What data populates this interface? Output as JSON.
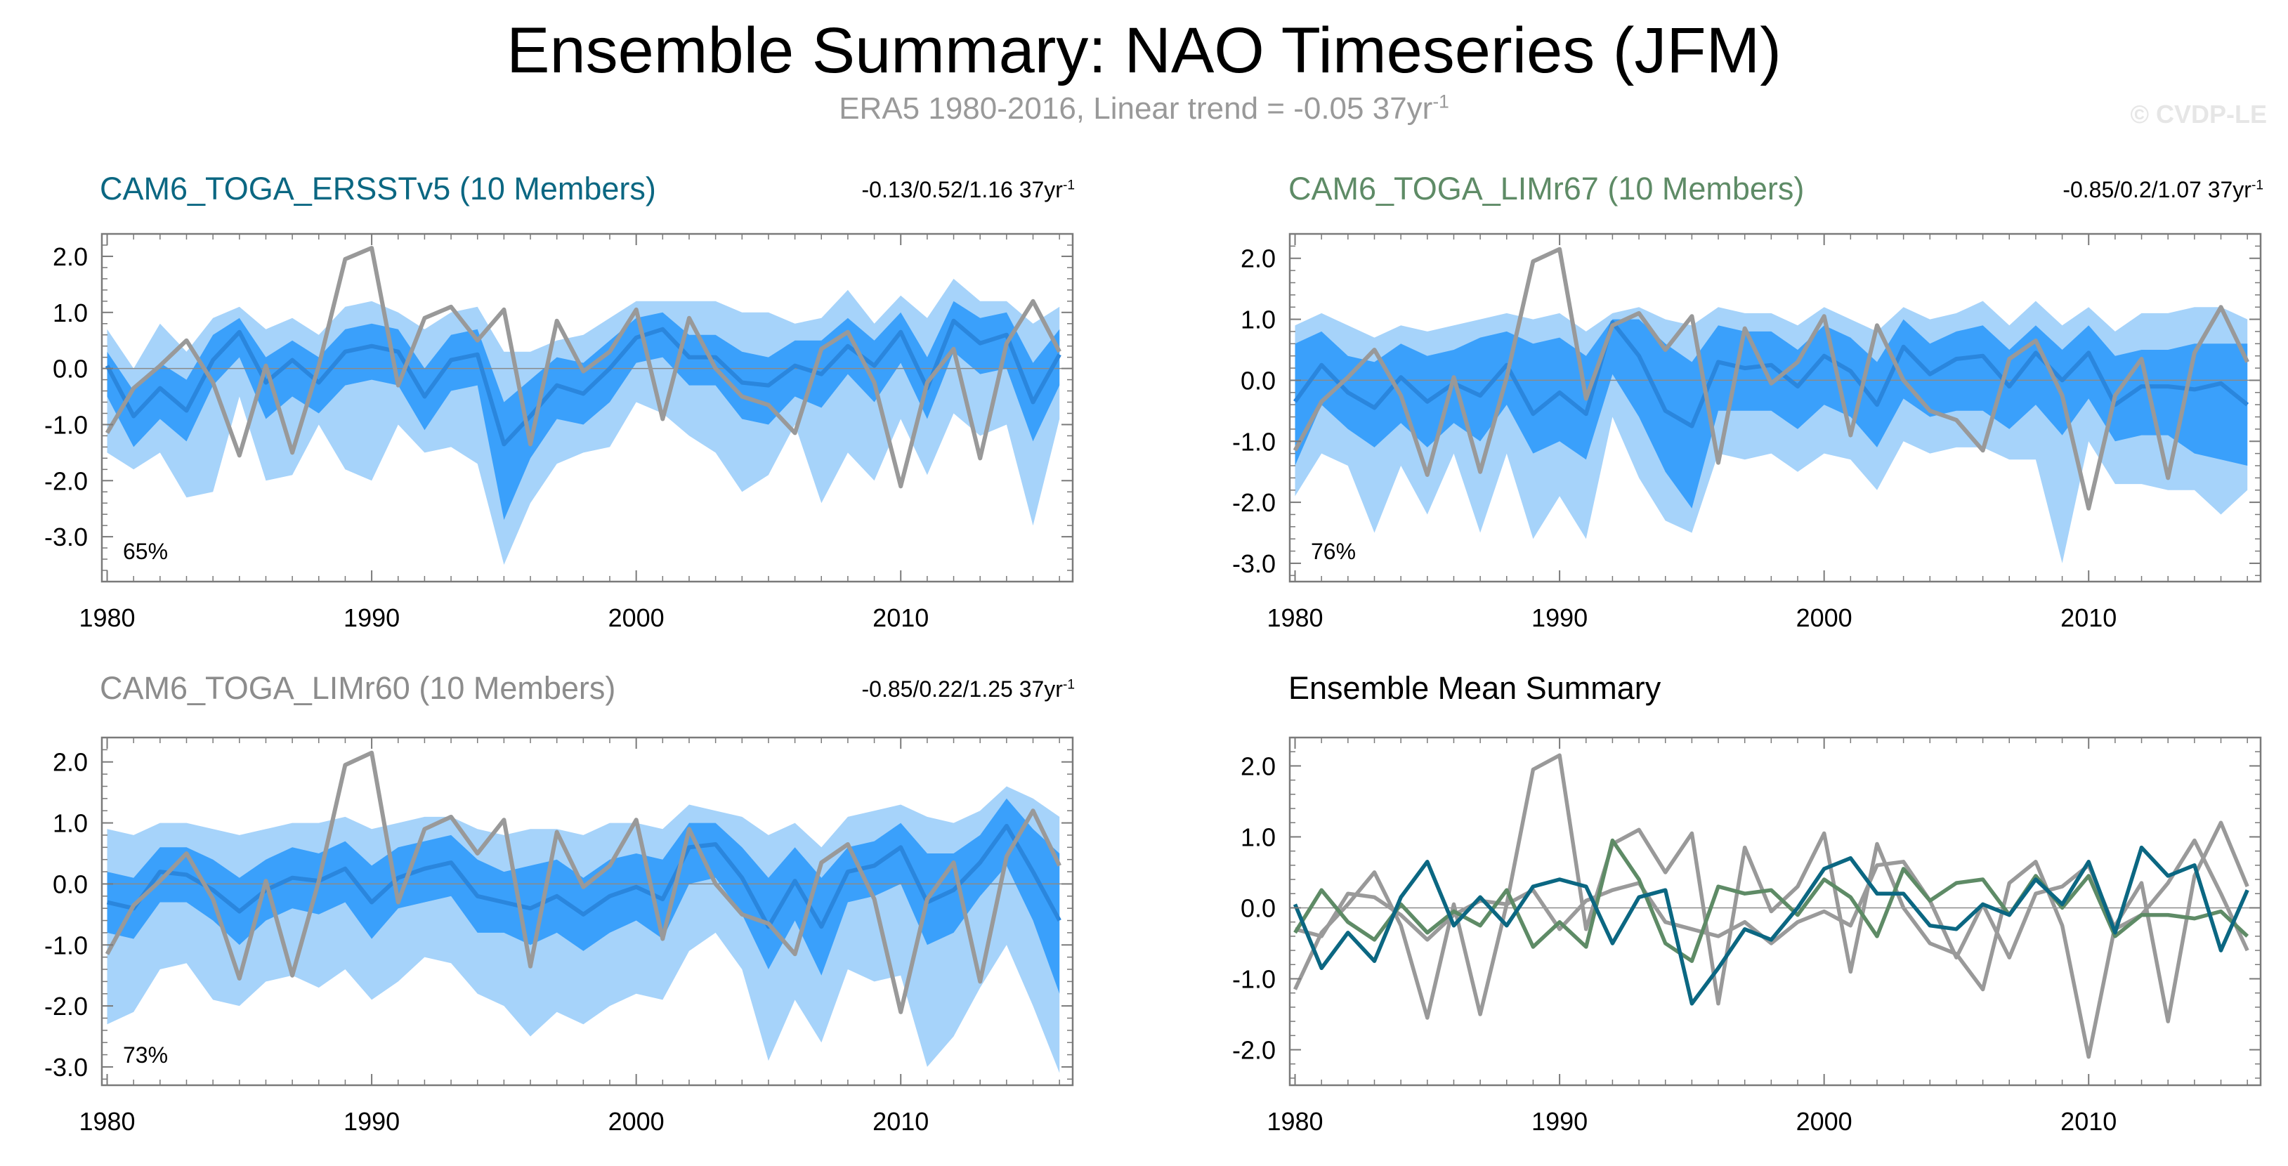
{
  "header": {
    "title": "Ensemble Summary: NAO Timeseries (JFM)",
    "subtitle_main": "ERA5 1980-2016, Linear trend = -0.05 37yr",
    "subtitle_exp": "-1",
    "watermark": "© CVDP-LE"
  },
  "colors": {
    "obs": "#999999",
    "ens_mean": "#2a86dd",
    "band_outer": "#a6d3fa",
    "band_inner": "#3aa0fb",
    "cam6_ersst": "#0b6782",
    "cam6_limr67": "#5e8b66",
    "cam6_limr60": "#8c8c8c"
  },
  "chart_data": [
    {
      "id": "ersst",
      "type": "line",
      "title": "CAM6_TOGA_ERSSTv5 (10 Members)",
      "title_color": "#0b6782",
      "trend_text": "-0.13/0.52/1.16 37yr",
      "trend_exp": "-1",
      "percent": "65%",
      "xlim": [
        1979.8,
        2016.5
      ],
      "ylim": [
        -3.8,
        2.4
      ],
      "yticks": [
        2.0,
        1.0,
        0.0,
        -1.0,
        -2.0,
        -3.0
      ],
      "ytick_labels": [
        "2.0",
        "1.0",
        "0.0",
        "-1.0",
        "-2.0",
        "-3.0"
      ],
      "xticks": [
        1980,
        1990,
        2000,
        2010
      ],
      "x": [
        1980,
        1981,
        1982,
        1983,
        1984,
        1985,
        1986,
        1987,
        1988,
        1989,
        1990,
        1991,
        1992,
        1993,
        1994,
        1995,
        1996,
        1997,
        1998,
        1999,
        2000,
        2001,
        2002,
        2003,
        2004,
        2005,
        2006,
        2007,
        2008,
        2009,
        2010,
        2011,
        2012,
        2013,
        2014,
        2015,
        2016
      ],
      "ens_mean": [
        0.05,
        -0.85,
        -0.35,
        -0.75,
        0.15,
        0.65,
        -0.25,
        0.15,
        -0.25,
        0.3,
        0.4,
        0.3,
        -0.5,
        0.15,
        0.25,
        -1.35,
        -0.85,
        -0.3,
        -0.45,
        0.0,
        0.55,
        0.7,
        0.2,
        0.2,
        -0.25,
        -0.3,
        0.05,
        -0.1,
        0.4,
        0.05,
        0.65,
        -0.35,
        0.85,
        0.45,
        0.6,
        -0.6,
        0.25
      ],
      "inner_max": [
        0.3,
        -0.4,
        0.1,
        -0.2,
        0.6,
        0.9,
        0.2,
        0.5,
        0.2,
        0.7,
        0.8,
        0.7,
        0.0,
        0.6,
        0.7,
        -0.6,
        -0.2,
        0.2,
        0.1,
        0.5,
        0.9,
        1.0,
        0.6,
        0.6,
        0.3,
        0.2,
        0.5,
        0.5,
        0.9,
        0.5,
        1.0,
        0.2,
        1.2,
        0.9,
        1.0,
        0.1,
        0.7
      ],
      "inner_min": [
        -0.5,
        -1.4,
        -0.9,
        -1.3,
        -0.3,
        0.2,
        -0.9,
        -0.5,
        -0.8,
        -0.3,
        -0.2,
        -0.3,
        -1.1,
        -0.4,
        -0.3,
        -2.7,
        -1.6,
        -0.9,
        -1.0,
        -0.6,
        0.1,
        0.2,
        -0.3,
        -0.3,
        -0.9,
        -1.0,
        -0.5,
        -0.7,
        -0.1,
        -0.6,
        0.1,
        -0.9,
        0.3,
        -0.1,
        0.0,
        -1.3,
        -0.3
      ],
      "outer_max": [
        0.7,
        0.0,
        0.8,
        0.3,
        0.9,
        1.1,
        0.7,
        0.9,
        0.6,
        1.1,
        1.2,
        1.0,
        0.7,
        1.0,
        1.1,
        0.3,
        0.3,
        0.5,
        0.6,
        0.9,
        1.2,
        1.2,
        1.2,
        1.2,
        1.0,
        1.0,
        0.8,
        0.9,
        1.4,
        0.8,
        1.3,
        0.9,
        1.6,
        1.2,
        1.2,
        0.8,
        1.1
      ],
      "outer_min": [
        -1.5,
        -1.8,
        -1.5,
        -2.3,
        -2.2,
        -0.5,
        -2.0,
        -1.9,
        -1.0,
        -1.8,
        -2.0,
        -1.0,
        -1.5,
        -1.4,
        -1.7,
        -3.5,
        -2.4,
        -1.7,
        -1.5,
        -1.4,
        -0.6,
        -0.8,
        -1.2,
        -1.5,
        -2.2,
        -1.9,
        -1.0,
        -2.4,
        -1.5,
        -2.0,
        -0.9,
        -1.9,
        -0.8,
        -1.2,
        -1.0,
        -2.8,
        -0.9
      ],
      "obs": [
        -1.15,
        -0.35,
        0.05,
        0.5,
        -0.25,
        -1.55,
        0.05,
        -1.5,
        0.05,
        1.95,
        2.15,
        -0.3,
        0.9,
        1.1,
        0.5,
        1.05,
        -1.35,
        0.85,
        -0.05,
        0.3,
        1.05,
        -0.9,
        0.9,
        0.0,
        -0.5,
        -0.65,
        -1.15,
        0.35,
        0.65,
        -0.25,
        -2.1,
        -0.25,
        0.35,
        -1.6,
        0.45,
        1.2,
        0.3
      ]
    },
    {
      "id": "limr67",
      "type": "line",
      "title": "CAM6_TOGA_LIMr67 (10 Members)",
      "title_color": "#5e8b66",
      "trend_text": "-0.85/0.2/1.07 37yr",
      "trend_exp": "-1",
      "percent": "76%",
      "xlim": [
        1979.8,
        2016.5
      ],
      "ylim": [
        -3.3,
        2.4
      ],
      "yticks": [
        2.0,
        1.0,
        0.0,
        -1.0,
        -2.0,
        -3.0
      ],
      "ytick_labels": [
        "2.0",
        "1.0",
        "0.0",
        "-1.0",
        "-2.0",
        "-3.0"
      ],
      "xticks": [
        1980,
        1990,
        2000,
        2010
      ],
      "x": [
        1980,
        1981,
        1982,
        1983,
        1984,
        1985,
        1986,
        1987,
        1988,
        1989,
        1990,
        1991,
        1992,
        1993,
        1994,
        1995,
        1996,
        1997,
        1998,
        1999,
        2000,
        2001,
        2002,
        2003,
        2004,
        2005,
        2006,
        2007,
        2008,
        2009,
        2010,
        2011,
        2012,
        2013,
        2014,
        2015,
        2016
      ],
      "ens_mean": [
        -0.35,
        0.25,
        -0.2,
        -0.45,
        0.05,
        -0.35,
        -0.05,
        -0.25,
        0.25,
        -0.55,
        -0.2,
        -0.55,
        0.95,
        0.4,
        -0.5,
        -0.75,
        0.3,
        0.2,
        0.25,
        -0.1,
        0.4,
        0.15,
        -0.4,
        0.55,
        0.1,
        0.35,
        0.4,
        -0.1,
        0.45,
        0.0,
        0.45,
        -0.4,
        -0.1,
        -0.1,
        -0.15,
        -0.05,
        -0.4
      ],
      "inner_max": [
        0.6,
        0.8,
        0.4,
        0.3,
        0.6,
        0.4,
        0.5,
        0.7,
        0.8,
        0.6,
        0.7,
        0.4,
        1.0,
        1.0,
        0.6,
        0.3,
        0.9,
        0.8,
        0.8,
        0.5,
        0.9,
        0.7,
        0.3,
        1.0,
        0.6,
        0.8,
        0.9,
        0.5,
        0.9,
        0.5,
        0.9,
        0.4,
        0.5,
        0.5,
        0.6,
        0.6,
        0.6
      ],
      "inner_min": [
        -1.4,
        -0.4,
        -0.8,
        -1.1,
        -0.7,
        -1.1,
        -0.7,
        -1.0,
        -0.4,
        -1.2,
        -1.0,
        -1.3,
        0.1,
        -0.6,
        -1.5,
        -2.1,
        -0.5,
        -0.5,
        -0.5,
        -0.8,
        -0.4,
        -0.6,
        -1.1,
        -0.3,
        -0.6,
        -0.5,
        -0.5,
        -0.8,
        -0.4,
        -0.9,
        -0.3,
        -1.0,
        -0.9,
        -0.9,
        -1.2,
        -1.3,
        -1.4
      ],
      "outer_max": [
        0.9,
        1.1,
        0.9,
        0.7,
        0.9,
        0.8,
        0.9,
        1.0,
        1.1,
        1.0,
        1.1,
        0.8,
        1.1,
        1.2,
        1.0,
        0.9,
        1.2,
        1.1,
        1.1,
        0.9,
        1.2,
        1.0,
        0.8,
        1.2,
        1.0,
        1.1,
        1.3,
        0.9,
        1.3,
        0.9,
        1.2,
        0.8,
        1.1,
        1.1,
        1.2,
        1.2,
        1.0
      ],
      "outer_min": [
        -1.9,
        -1.2,
        -1.4,
        -2.5,
        -1.4,
        -2.2,
        -1.2,
        -2.5,
        -1.2,
        -2.6,
        -1.9,
        -2.6,
        -0.6,
        -1.6,
        -2.3,
        -2.5,
        -1.2,
        -1.3,
        -1.2,
        -1.5,
        -1.2,
        -1.3,
        -1.8,
        -1.0,
        -1.2,
        -1.1,
        -1.1,
        -1.3,
        -1.3,
        -3.0,
        -1.0,
        -1.7,
        -1.7,
        -1.8,
        -1.8,
        -2.2,
        -1.8
      ],
      "obs": [
        -1.15,
        -0.35,
        0.05,
        0.5,
        -0.25,
        -1.55,
        0.05,
        -1.5,
        0.05,
        1.95,
        2.15,
        -0.3,
        0.9,
        1.1,
        0.5,
        1.05,
        -1.35,
        0.85,
        -0.05,
        0.3,
        1.05,
        -0.9,
        0.9,
        0.0,
        -0.5,
        -0.65,
        -1.15,
        0.35,
        0.65,
        -0.25,
        -2.1,
        -0.25,
        0.35,
        -1.6,
        0.45,
        1.2,
        0.3
      ]
    },
    {
      "id": "limr60",
      "type": "line",
      "title": "CAM6_TOGA_LIMr60 (10 Members)",
      "title_color": "#8c8c8c",
      "trend_text": "-0.85/0.22/1.25 37yr",
      "trend_exp": "-1",
      "percent": "73%",
      "xlim": [
        1979.8,
        2016.5
      ],
      "ylim": [
        -3.3,
        2.4
      ],
      "yticks": [
        2.0,
        1.0,
        0.0,
        -1.0,
        -2.0,
        -3.0
      ],
      "ytick_labels": [
        "2.0",
        "1.0",
        "0.0",
        "-1.0",
        "-2.0",
        "-3.0"
      ],
      "xticks": [
        1980,
        1990,
        2000,
        2010
      ],
      "x": [
        1980,
        1981,
        1982,
        1983,
        1984,
        1985,
        1986,
        1987,
        1988,
        1989,
        1990,
        1991,
        1992,
        1993,
        1994,
        1995,
        1996,
        1997,
        1998,
        1999,
        2000,
        2001,
        2002,
        2003,
        2004,
        2005,
        2006,
        2007,
        2008,
        2009,
        2010,
        2011,
        2012,
        2013,
        2014,
        2015,
        2016
      ],
      "ens_mean": [
        -0.3,
        -0.4,
        0.2,
        0.15,
        -0.1,
        -0.45,
        -0.1,
        0.1,
        0.05,
        0.25,
        -0.3,
        0.1,
        0.25,
        0.35,
        -0.2,
        -0.3,
        -0.4,
        -0.2,
        -0.5,
        -0.2,
        -0.05,
        -0.25,
        0.6,
        0.65,
        0.1,
        -0.7,
        0.05,
        -0.7,
        0.2,
        0.3,
        0.6,
        -0.3,
        -0.1,
        0.35,
        0.95,
        0.2,
        -0.6
      ],
      "inner_max": [
        0.2,
        0.1,
        0.6,
        0.6,
        0.4,
        0.1,
        0.4,
        0.6,
        0.5,
        0.7,
        0.3,
        0.6,
        0.7,
        0.8,
        0.4,
        0.2,
        0.3,
        0.4,
        0.1,
        0.4,
        0.5,
        0.4,
        1.0,
        1.0,
        0.6,
        0.1,
        0.6,
        0.1,
        0.6,
        0.7,
        1.0,
        0.5,
        0.5,
        0.8,
        1.4,
        0.9,
        0.5
      ],
      "inner_min": [
        -0.8,
        -0.9,
        -0.3,
        -0.3,
        -0.6,
        -1.0,
        -0.6,
        -0.4,
        -0.5,
        -0.3,
        -0.9,
        -0.4,
        -0.3,
        -0.2,
        -0.8,
        -0.8,
        -1.0,
        -0.8,
        -1.1,
        -0.8,
        -0.6,
        -0.9,
        0.0,
        0.1,
        -0.5,
        -1.4,
        -0.6,
        -1.5,
        -0.3,
        -0.2,
        0.0,
        -1.0,
        -0.8,
        -0.2,
        0.3,
        -0.6,
        -1.8
      ],
      "outer_max": [
        0.9,
        0.8,
        1.0,
        1.0,
        0.9,
        0.8,
        0.9,
        1.0,
        1.0,
        1.1,
        0.9,
        1.0,
        1.1,
        1.1,
        0.9,
        0.8,
        0.9,
        0.9,
        0.8,
        1.0,
        1.0,
        0.9,
        1.3,
        1.2,
        1.1,
        0.8,
        1.0,
        0.6,
        1.1,
        1.2,
        1.3,
        1.1,
        1.0,
        1.2,
        1.6,
        1.4,
        1.1
      ],
      "outer_min": [
        -2.3,
        -2.1,
        -1.4,
        -1.3,
        -1.9,
        -2.0,
        -1.6,
        -1.5,
        -1.7,
        -1.4,
        -1.9,
        -1.6,
        -1.2,
        -1.3,
        -1.8,
        -2.0,
        -2.5,
        -2.1,
        -2.3,
        -2.0,
        -1.8,
        -1.9,
        -1.1,
        -0.8,
        -1.4,
        -2.9,
        -1.9,
        -2.6,
        -1.4,
        -1.6,
        -1.5,
        -3.0,
        -2.5,
        -1.7,
        -1.0,
        -2.0,
        -3.1
      ],
      "obs": [
        -1.15,
        -0.35,
        0.05,
        0.5,
        -0.25,
        -1.55,
        0.05,
        -1.5,
        0.05,
        1.95,
        2.15,
        -0.3,
        0.9,
        1.1,
        0.5,
        1.05,
        -1.35,
        0.85,
        -0.05,
        0.3,
        1.05,
        -0.9,
        0.9,
        0.0,
        -0.5,
        -0.65,
        -1.15,
        0.35,
        0.65,
        -0.25,
        -2.1,
        -0.25,
        0.35,
        -1.6,
        0.45,
        1.2,
        0.3
      ]
    },
    {
      "id": "summary",
      "type": "line",
      "title": "Ensemble Mean Summary",
      "title_color": "#000000",
      "trend_text": "",
      "trend_exp": "",
      "percent": "",
      "xlim": [
        1979.8,
        2016.5
      ],
      "ylim": [
        -2.5,
        2.4
      ],
      "yticks": [
        2.0,
        1.0,
        0.0,
        -1.0,
        -2.0
      ],
      "ytick_labels": [
        "2.0",
        "1.0",
        "0.0",
        "-1.0",
        "-2.0"
      ],
      "xticks": [
        1980,
        1990,
        2000,
        2010
      ],
      "x": [
        1980,
        1981,
        1982,
        1983,
        1984,
        1985,
        1986,
        1987,
        1988,
        1989,
        1990,
        1991,
        1992,
        1993,
        1994,
        1995,
        1996,
        1997,
        1998,
        1999,
        2000,
        2001,
        2002,
        2003,
        2004,
        2005,
        2006,
        2007,
        2008,
        2009,
        2010,
        2011,
        2012,
        2013,
        2014,
        2015,
        2016
      ],
      "series": [
        {
          "color": "#999999",
          "values": [
            -1.15,
            -0.35,
            0.05,
            0.5,
            -0.25,
            -1.55,
            0.05,
            -1.5,
            0.05,
            1.95,
            2.15,
            -0.3,
            0.9,
            1.1,
            0.5,
            1.05,
            -1.35,
            0.85,
            -0.05,
            0.3,
            1.05,
            -0.9,
            0.9,
            0.0,
            -0.5,
            -0.65,
            -1.15,
            0.35,
            0.65,
            -0.25,
            -2.1,
            -0.25,
            0.35,
            -1.6,
            0.45,
            1.2,
            0.3
          ]
        },
        {
          "color": "#9a9a9a",
          "values": [
            -0.3,
            -0.4,
            0.2,
            0.15,
            -0.1,
            -0.45,
            -0.1,
            0.1,
            0.05,
            0.25,
            -0.3,
            0.1,
            0.25,
            0.35,
            -0.2,
            -0.3,
            -0.4,
            -0.2,
            -0.5,
            -0.2,
            -0.05,
            -0.25,
            0.6,
            0.65,
            0.1,
            -0.7,
            0.05,
            -0.7,
            0.2,
            0.3,
            0.6,
            -0.3,
            -0.1,
            0.35,
            0.95,
            0.2,
            -0.6
          ]
        },
        {
          "color": "#5e8b66",
          "values": [
            -0.35,
            0.25,
            -0.2,
            -0.45,
            0.05,
            -0.35,
            -0.05,
            -0.25,
            0.25,
            -0.55,
            -0.2,
            -0.55,
            0.95,
            0.4,
            -0.5,
            -0.75,
            0.3,
            0.2,
            0.25,
            -0.1,
            0.4,
            0.15,
            -0.4,
            0.55,
            0.1,
            0.35,
            0.4,
            -0.1,
            0.45,
            0.0,
            0.45,
            -0.4,
            -0.1,
            -0.1,
            -0.15,
            -0.05,
            -0.4
          ]
        },
        {
          "color": "#0b6782",
          "values": [
            0.05,
            -0.85,
            -0.35,
            -0.75,
            0.15,
            0.65,
            -0.25,
            0.15,
            -0.25,
            0.3,
            0.4,
            0.3,
            -0.5,
            0.15,
            0.25,
            -1.35,
            -0.85,
            -0.3,
            -0.45,
            0.0,
            0.55,
            0.7,
            0.2,
            0.2,
            -0.25,
            -0.3,
            0.05,
            -0.1,
            0.4,
            0.05,
            0.65,
            -0.35,
            0.85,
            0.45,
            0.6,
            -0.6,
            0.25
          ]
        }
      ]
    }
  ]
}
